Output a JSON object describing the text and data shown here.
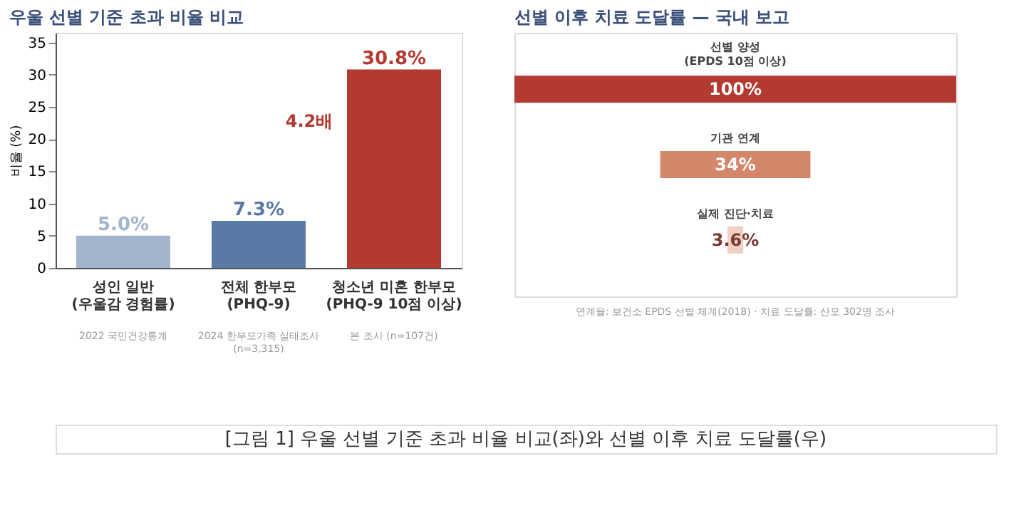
{
  "chart_data": [
    {
      "type": "bar",
      "title": "우울 선별 기준 초과 비율 비교",
      "ylabel": "비율 (%)",
      "categories": [
        "성인 일반\n(우울감 경험률)",
        "전체 한부모\n(PHQ-9)",
        "청소년 미혼 한부모\n(PHQ-9 10점 이상)"
      ],
      "values": [
        5.0,
        7.3,
        30.8
      ],
      "colors": [
        "#a3b5cc",
        "#5a7aa6",
        "#b33a30"
      ],
      "ylim": [
        0,
        36.5
      ],
      "yticks": [
        0,
        5,
        10,
        15,
        20,
        25,
        30,
        35
      ],
      "grid": false,
      "value_labels": [
        "5.0%",
        "7.3%",
        "30.8%"
      ],
      "annotations": [
        "2022 국민건강통계",
        "2024 한부모가족 실태조사\n(n=3,315)",
        "본 조사 (n=107건)",
        "4.2배"
      ]
    },
    {
      "type": "other",
      "title": "선별 이후 치료 도달률 — 국내 보고",
      "categories": [
        "선별 양성\n(EPDS 10점 이상)",
        "기관 연계",
        "실제 진단·치료"
      ],
      "values": [
        100,
        34,
        3.6
      ],
      "colors": [
        "#b33a30",
        "#d4866b",
        "#f0cfc4"
      ],
      "value_labels": [
        "100%",
        "34%",
        "3.6%"
      ],
      "annotations": [
        "연계율: 보건소 EPDS 선별 체계(2018) · 치료 도달률: 산모 302명 조사",
        "[그림 1] 우울 선별 기준 초과 비율 비교(좌)와 선별 이후 치료 도달률(우)"
      ]
    }
  ]
}
